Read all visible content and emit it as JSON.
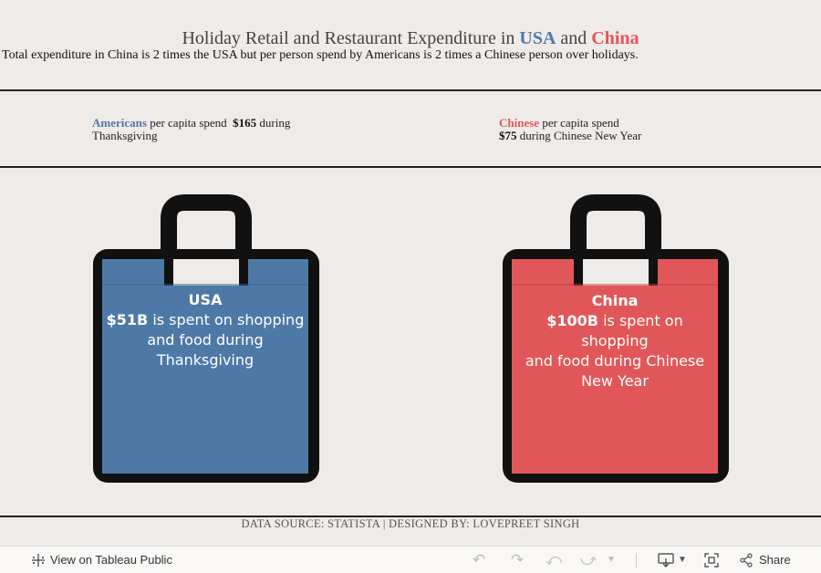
{
  "header": {
    "title_prefix": "Holiday Retail and Restaurant Expenditure in",
    "title_usa": "USA",
    "title_and": "and",
    "title_china": "China",
    "subtitle": "Total expenditure in China is 2 times the USA but per person spend by Americans is 2 times a Chinese person over holidays."
  },
  "per_capita": {
    "usa": {
      "label": "Americans",
      "text1": "per capita spend",
      "amount": "$165",
      "text2": "during",
      "text3": "Thanksgiving"
    },
    "china": {
      "label": "Chinese",
      "text1": "per capita spend",
      "amount": "$75",
      "text2": "during Chinese New Year"
    }
  },
  "bags": {
    "usa": {
      "name": "USA",
      "amount": "$51B",
      "line1": "is spent on shopping",
      "line2": "and food during",
      "line3": "Thanksgiving"
    },
    "china": {
      "name": "China",
      "amount": "$100B",
      "line1": "is spent on shopping",
      "line2": "and food during Chinese",
      "line3": "New Year"
    }
  },
  "colors": {
    "usa": "#4e79a7",
    "china": "#e15759",
    "bag_outline": "#111111",
    "background": "#efebe8"
  },
  "footer": {
    "source": "DATA SOURCE: STATISTA | DESIGNED BY: LOVEPREET SINGH"
  },
  "toolbar": {
    "view_label": "View on Tableau Public",
    "share_label": "Share",
    "icons": [
      "tableau-icon",
      "undo-icon",
      "redo-icon",
      "revert-icon",
      "forward-icon",
      "download-icon",
      "fullscreen-icon",
      "share-icon"
    ]
  }
}
